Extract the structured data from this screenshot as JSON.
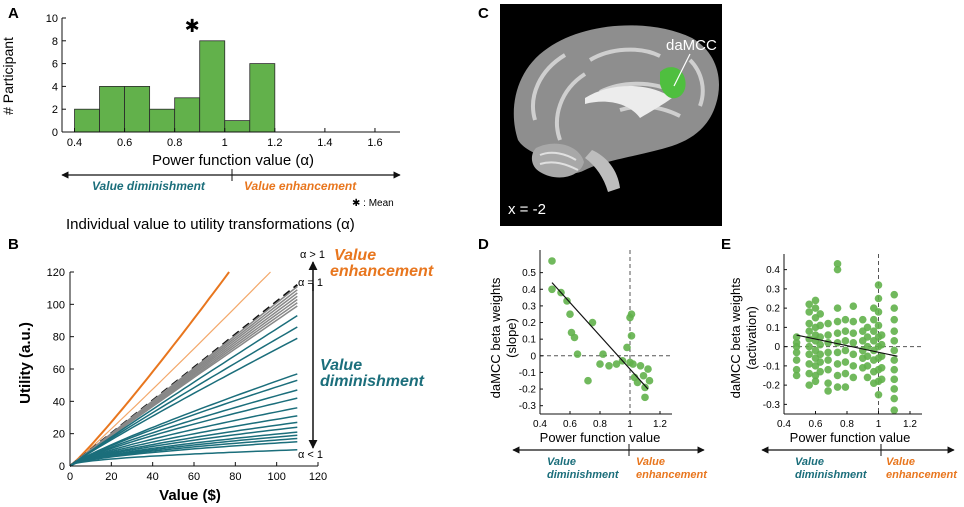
{
  "colors": {
    "green": "#62b14b",
    "green_dark": "#2e7d32",
    "teal": "#1b6e7b",
    "orange": "#e8761e",
    "orange_light": "#f3a86a",
    "gray": "#888888",
    "black": "#111111"
  },
  "panels": {
    "A": {
      "letter": "A"
    },
    "B": {
      "letter": "B"
    },
    "C": {
      "letter": "C"
    },
    "D": {
      "letter": "D"
    },
    "E": {
      "letter": "E"
    }
  },
  "labels": {
    "value_diminishment": "Value diminishment",
    "value_enhancement": "Value enhancement",
    "mean_note": "✱ : Mean",
    "mean_star": "✱",
    "section_title": "Individual value to utility transformations (α)",
    "alpha_gt1": "α > 1",
    "alpha_eq1": "α = 1",
    "alpha_lt1": "α < 1",
    "value_word": "Value",
    "enhancement_word": "enhancement",
    "diminishment_word": "diminishment",
    "daMCC": "daMCC",
    "x_coord": "x = -2"
  },
  "chart_data": [
    {
      "id": "A",
      "type": "bar",
      "title": "",
      "xlabel": "Power function value (α)",
      "ylabel": "# Participant",
      "bin_edges": [
        0.4,
        0.5,
        0.6,
        0.7,
        0.8,
        0.9,
        1.0,
        1.1,
        1.2
      ],
      "values": [
        2,
        4,
        4,
        2,
        3,
        8,
        1,
        6
      ],
      "xlim": [
        0.35,
        1.7
      ],
      "ylim": [
        0,
        10
      ],
      "xticks": [
        0.4,
        0.6,
        0.8,
        1.0,
        1.2,
        1.4,
        1.6
      ],
      "xtick_labels": [
        "0.4",
        "0.6",
        "0.8",
        "1",
        "1.2",
        "1.4",
        "1.6"
      ],
      "yticks": [
        0,
        2,
        4,
        6,
        8,
        10
      ],
      "ytick_labels": [
        "0",
        "2",
        "4",
        "6",
        "8",
        "10"
      ],
      "mean": 0.87
    },
    {
      "id": "B",
      "type": "line",
      "xlabel": "Value ($)",
      "ylabel": "Utility (a.u.)",
      "xlim": [
        0,
        120
      ],
      "ylim": [
        0,
        120
      ],
      "xticks": [
        0,
        20,
        40,
        60,
        80,
        100,
        120
      ],
      "xtick_labels": [
        "0",
        "20",
        "40",
        "60",
        "80",
        "100",
        "120"
      ],
      "yticks": [
        0,
        20,
        40,
        60,
        80,
        100,
        120
      ],
      "ytick_labels": [
        "0",
        "20",
        "40",
        "60",
        "80",
        "100",
        "120"
      ],
      "series": [
        {
          "name": "enhancement",
          "color": "orange",
          "endpoints": [
            [
              77,
              120
            ]
          ],
          "width": 2
        },
        {
          "name": "enhancement-light",
          "color": "orange_light",
          "endpoints": [
            [
              97,
              120
            ]
          ],
          "width": 1.2
        },
        {
          "name": "identity",
          "color": "black",
          "endpoints": [
            [
              110,
              112
            ]
          ],
          "dashed": true,
          "width": 2.2
        },
        {
          "name": "near-identity",
          "color": "gray",
          "x_end": 110,
          "y_ends": [
            111,
            109,
            107,
            105,
            103,
            101,
            99
          ]
        },
        {
          "name": "diminishment",
          "color": "teal",
          "x_end": 110,
          "y_ends": [
            93,
            86,
            79,
            57,
            53,
            47,
            42,
            36,
            31,
            27,
            24,
            21,
            19,
            17,
            15,
            10
          ]
        }
      ]
    },
    {
      "id": "D",
      "type": "scatter",
      "xlabel": "Power function value",
      "ylabel": "daMCC beta weights\n(slope)",
      "xlim": [
        0.4,
        1.2
      ],
      "ylim": [
        -0.35,
        0.6
      ],
      "xticks": [
        0.4,
        0.6,
        0.8,
        1.0,
        1.2
      ],
      "xtick_labels": [
        "0.4",
        "0.6",
        "0.8",
        "1",
        "1.2"
      ],
      "yticks": [
        -0.3,
        -0.2,
        -0.1,
        0,
        0.1,
        0.2,
        0.3,
        0.4,
        0.5
      ],
      "ytick_labels": [
        "-0.3",
        "-0.2",
        "-0.1",
        "0",
        "0.1",
        "0.2",
        "0.3",
        "0.4",
        "0.5"
      ],
      "points": [
        [
          0.48,
          0.57
        ],
        [
          0.48,
          0.4
        ],
        [
          0.54,
          0.38
        ],
        [
          0.58,
          0.33
        ],
        [
          0.6,
          0.25
        ],
        [
          0.61,
          0.14
        ],
        [
          0.63,
          0.11
        ],
        [
          0.65,
          0.01
        ],
        [
          0.72,
          -0.15
        ],
        [
          0.75,
          0.2
        ],
        [
          0.8,
          -0.05
        ],
        [
          0.82,
          0.01
        ],
        [
          0.86,
          -0.06
        ],
        [
          0.91,
          -0.05
        ],
        [
          0.95,
          -0.03
        ],
        [
          0.98,
          0.05
        ],
        [
          1.0,
          0.23
        ],
        [
          1.01,
          0.25
        ],
        [
          1.01,
          0.12
        ],
        [
          1.0,
          -0.04
        ],
        [
          1.02,
          -0.05
        ],
        [
          1.03,
          -0.13
        ],
        [
          1.05,
          -0.16
        ],
        [
          1.07,
          -0.06
        ],
        [
          1.09,
          -0.12
        ],
        [
          1.1,
          -0.19
        ],
        [
          1.1,
          -0.25
        ],
        [
          1.12,
          -0.08
        ],
        [
          1.13,
          -0.15
        ]
      ],
      "fit": [
        [
          0.48,
          0.44
        ],
        [
          1.12,
          -0.2
        ]
      ],
      "ref_x": 1.0,
      "ref_y": 0
    },
    {
      "id": "E",
      "type": "scatter",
      "xlabel": "Power function value",
      "ylabel": "daMCC beta weights\n(activation)",
      "xlim": [
        0.4,
        1.2
      ],
      "ylim": [
        -0.35,
        0.45
      ],
      "xticks": [
        0.4,
        0.6,
        0.8,
        1.0,
        1.2
      ],
      "xtick_labels": [
        "0.4",
        "0.6",
        "0.8",
        "1",
        "1.2"
      ],
      "yticks": [
        -0.3,
        -0.2,
        -0.1,
        0,
        0.1,
        0.2,
        0.3,
        0.4
      ],
      "ytick_labels": [
        "-0.3",
        "-0.2",
        "-0.1",
        "0",
        "0.1",
        "0.2",
        "0.3",
        "0.4"
      ],
      "columns": [
        {
          "x": 0.48,
          "values": [
            0.05,
            0.02,
            0.0,
            -0.03,
            -0.07,
            -0.12,
            -0.15
          ]
        },
        {
          "x": 0.56,
          "values": [
            0.22,
            0.18,
            0.12,
            0.08,
            0.04,
            0.0,
            -0.04,
            -0.09,
            -0.14,
            -0.2
          ]
        },
        {
          "x": 0.6,
          "values": [
            0.24,
            0.2,
            0.15,
            0.1,
            0.06,
            0.03,
            -0.02,
            -0.06,
            -0.1,
            -0.15,
            -0.18
          ]
        },
        {
          "x": 0.63,
          "values": [
            0.17,
            0.11,
            0.05,
            0.01,
            -0.04,
            -0.08,
            -0.13
          ]
        },
        {
          "x": 0.68,
          "values": [
            0.12,
            0.06,
            0.02,
            -0.03,
            -0.07,
            -0.12,
            -0.19,
            -0.23
          ]
        },
        {
          "x": 0.74,
          "values": [
            0.43,
            0.4,
            0.2,
            0.13,
            0.07,
            0.02,
            -0.03,
            -0.09,
            -0.15,
            -0.21
          ]
        },
        {
          "x": 0.79,
          "values": [
            0.14,
            0.08,
            0.03,
            -0.02,
            -0.08,
            -0.14,
            -0.21
          ]
        },
        {
          "x": 0.84,
          "values": [
            0.21,
            0.13,
            0.07,
            0.02,
            -0.04,
            -0.1,
            -0.16
          ]
        },
        {
          "x": 0.9,
          "values": [
            0.14,
            0.08,
            0.03,
            -0.02,
            -0.06,
            -0.11
          ]
        },
        {
          "x": 0.93,
          "values": [
            0.1,
            0.05,
            0.0,
            -0.05,
            -0.1,
            -0.16
          ]
        },
        {
          "x": 0.97,
          "values": [
            0.2,
            0.14,
            0.08,
            0.03,
            -0.02,
            -0.07,
            -0.13,
            -0.19
          ]
        },
        {
          "x": 1.0,
          "values": [
            0.32,
            0.25,
            0.18,
            0.11,
            0.05,
            0.0,
            -0.06,
            -0.12,
            -0.18,
            -0.25
          ]
        },
        {
          "x": 1.02,
          "values": [
            0.06,
            0.01,
            -0.05,
            -0.11,
            -0.17
          ]
        },
        {
          "x": 1.1,
          "values": [
            0.27,
            0.2,
            0.14,
            0.08,
            0.03,
            -0.02,
            -0.07,
            -0.12,
            -0.17,
            -0.22,
            -0.27,
            -0.33
          ]
        }
      ],
      "fit": [
        [
          0.48,
          0.06
        ],
        [
          1.12,
          -0.05
        ]
      ],
      "ref_x": 1.0,
      "ref_y": 0
    }
  ]
}
